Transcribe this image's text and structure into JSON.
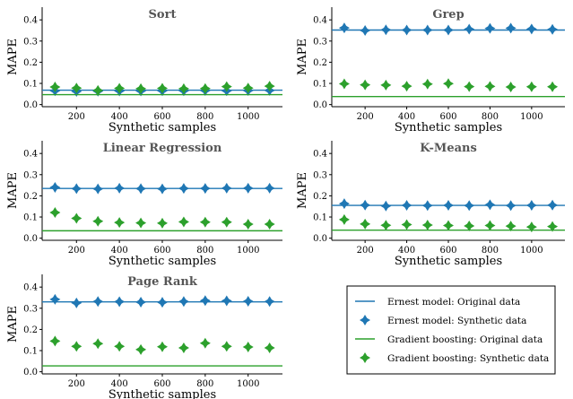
{
  "colors": {
    "ernest": "#1f77b4",
    "gradient": "#2ca02c",
    "axis": "#000000",
    "title": "#555555"
  },
  "chart_data": [
    {
      "type": "scatter",
      "title": "Sort",
      "xlabel": "Synthetic samples",
      "ylabel": "MAPE",
      "xlim": [
        40,
        1160
      ],
      "ylim": [
        -0.01,
        0.46
      ],
      "xticks": [
        200,
        400,
        600,
        800,
        1000
      ],
      "yticks": [
        0.0,
        0.1,
        0.2,
        0.3,
        0.4
      ],
      "x": [
        100,
        200,
        300,
        400,
        500,
        600,
        700,
        800,
        900,
        1000,
        1100
      ],
      "series": [
        {
          "name": "Ernest model: Original data",
          "kind": "line",
          "y": 0.068
        },
        {
          "name": "Ernest model: Synthetic data",
          "kind": "marker",
          "values": [
            0.065,
            0.062,
            0.063,
            0.064,
            0.064,
            0.065,
            0.065,
            0.066,
            0.065,
            0.066,
            0.067
          ]
        },
        {
          "name": "Gradient boosting: Original data",
          "kind": "line",
          "y": 0.047
        },
        {
          "name": "Gradient boosting: Synthetic data",
          "kind": "marker",
          "values": [
            0.083,
            0.078,
            0.067,
            0.077,
            0.075,
            0.077,
            0.075,
            0.076,
            0.085,
            0.078,
            0.087
          ]
        }
      ]
    },
    {
      "type": "scatter",
      "title": "Grep",
      "xlabel": "Synthetic samples",
      "ylabel": "MAPE",
      "xlim": [
        40,
        1160
      ],
      "ylim": [
        -0.01,
        0.46
      ],
      "xticks": [
        200,
        400,
        600,
        800,
        1000
      ],
      "yticks": [
        0.0,
        0.1,
        0.2,
        0.3,
        0.4
      ],
      "x": [
        100,
        200,
        300,
        400,
        500,
        600,
        700,
        800,
        900,
        1000,
        1100
      ],
      "series": [
        {
          "name": "Ernest model: Original data",
          "kind": "line",
          "y": 0.352
        },
        {
          "name": "Ernest model: Synthetic data",
          "kind": "marker",
          "values": [
            0.362,
            0.35,
            0.353,
            0.352,
            0.352,
            0.352,
            0.356,
            0.36,
            0.361,
            0.357,
            0.355
          ]
        },
        {
          "name": "Gradient boosting: Original data",
          "kind": "line",
          "y": 0.038
        },
        {
          "name": "Gradient boosting: Synthetic data",
          "kind": "marker",
          "values": [
            0.098,
            0.093,
            0.092,
            0.087,
            0.097,
            0.099,
            0.085,
            0.086,
            0.083,
            0.084,
            0.084
          ]
        }
      ]
    },
    {
      "type": "scatter",
      "title": "Linear Regression",
      "xlabel": "Synthetic samples",
      "ylabel": "MAPE",
      "xlim": [
        40,
        1160
      ],
      "ylim": [
        -0.01,
        0.46
      ],
      "xticks": [
        200,
        400,
        600,
        800,
        1000
      ],
      "yticks": [
        0.0,
        0.1,
        0.2,
        0.3,
        0.4
      ],
      "x": [
        100,
        200,
        300,
        400,
        500,
        600,
        700,
        800,
        900,
        1000,
        1100
      ],
      "series": [
        {
          "name": "Ernest model: Original data",
          "kind": "line",
          "y": 0.235
        },
        {
          "name": "Ernest model: Synthetic data",
          "kind": "marker",
          "values": [
            0.24,
            0.234,
            0.233,
            0.236,
            0.234,
            0.233,
            0.235,
            0.235,
            0.236,
            0.236,
            0.236
          ]
        },
        {
          "name": "Gradient boosting: Original data",
          "kind": "line",
          "y": 0.035
        },
        {
          "name": "Gradient boosting: Synthetic data",
          "kind": "marker",
          "values": [
            0.121,
            0.094,
            0.08,
            0.074,
            0.072,
            0.071,
            0.077,
            0.076,
            0.076,
            0.066,
            0.066
          ]
        }
      ]
    },
    {
      "type": "scatter",
      "title": "K-Means",
      "xlabel": "Synthetic samples",
      "ylabel": "MAPE",
      "xlim": [
        40,
        1160
      ],
      "ylim": [
        -0.01,
        0.46
      ],
      "xticks": [
        200,
        400,
        600,
        800,
        1000
      ],
      "yticks": [
        0.0,
        0.1,
        0.2,
        0.3,
        0.4
      ],
      "x": [
        100,
        200,
        300,
        400,
        500,
        600,
        700,
        800,
        900,
        1000,
        1100
      ],
      "series": [
        {
          "name": "Ernest model: Original data",
          "kind": "line",
          "y": 0.155
        },
        {
          "name": "Ernest model: Synthetic data",
          "kind": "marker",
          "values": [
            0.163,
            0.156,
            0.152,
            0.155,
            0.154,
            0.155,
            0.154,
            0.158,
            0.154,
            0.155,
            0.156
          ]
        },
        {
          "name": "Gradient boosting: Original data",
          "kind": "line",
          "y": 0.038
        },
        {
          "name": "Gradient boosting: Synthetic data",
          "kind": "marker",
          "values": [
            0.088,
            0.067,
            0.061,
            0.064,
            0.062,
            0.06,
            0.058,
            0.06,
            0.057,
            0.053,
            0.055
          ]
        }
      ]
    },
    {
      "type": "scatter",
      "title": "Page Rank",
      "xlabel": "Synthetic samples",
      "ylabel": "MAPE",
      "xlim": [
        40,
        1160
      ],
      "ylim": [
        -0.01,
        0.46
      ],
      "xticks": [
        200,
        400,
        600,
        800,
        1000
      ],
      "yticks": [
        0.0,
        0.1,
        0.2,
        0.3,
        0.4
      ],
      "x": [
        100,
        200,
        300,
        400,
        500,
        600,
        700,
        800,
        900,
        1000,
        1100
      ],
      "series": [
        {
          "name": "Ernest model: Original data",
          "kind": "line",
          "y": 0.33
        },
        {
          "name": "Ernest model: Synthetic data",
          "kind": "marker",
          "values": [
            0.342,
            0.325,
            0.332,
            0.331,
            0.329,
            0.328,
            0.332,
            0.336,
            0.335,
            0.333,
            0.332
          ]
        },
        {
          "name": "Gradient boosting: Original data",
          "kind": "line",
          "y": 0.028
        },
        {
          "name": "Gradient boosting: Synthetic data",
          "kind": "marker",
          "values": [
            0.145,
            0.12,
            0.133,
            0.12,
            0.105,
            0.118,
            0.113,
            0.135,
            0.12,
            0.117,
            0.113
          ]
        }
      ]
    }
  ],
  "legend": {
    "placement": "bottom-right",
    "entries": [
      {
        "label": "Ernest model: Original data",
        "kind": "line",
        "color": "#1f77b4"
      },
      {
        "label": "Ernest model: Synthetic data",
        "kind": "marker",
        "color": "#1f77b4"
      },
      {
        "label": "Gradient boosting: Original data",
        "kind": "line",
        "color": "#2ca02c"
      },
      {
        "label": "Gradient boosting: Synthetic data",
        "kind": "marker",
        "color": "#2ca02c"
      }
    ]
  }
}
